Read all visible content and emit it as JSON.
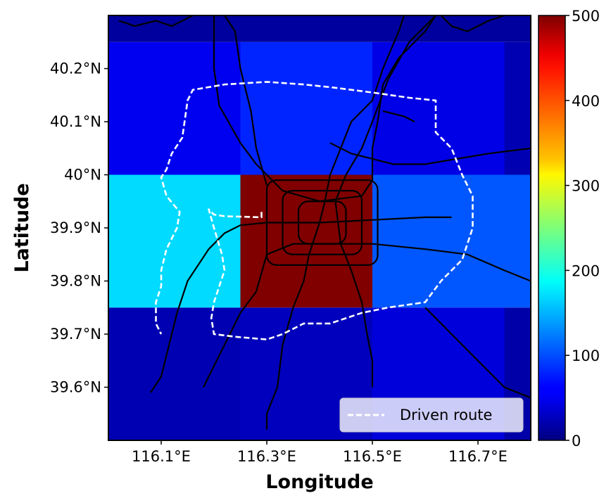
{
  "chart_data": {
    "type": "heatmap",
    "xlabel": "Longitude",
    "ylabel": "Latitude",
    "xlim": [
      116.0,
      116.8
    ],
    "ylim": [
      39.5,
      40.3
    ],
    "x_ticks": [
      {
        "value": 116.1,
        "label": "116.1°E"
      },
      {
        "value": 116.3,
        "label": "116.3°E"
      },
      {
        "value": 116.5,
        "label": "116.5°E"
      },
      {
        "value": 116.7,
        "label": "116.7°E"
      }
    ],
    "y_ticks": [
      {
        "value": 39.6,
        "label": "39.6°N"
      },
      {
        "value": 39.7,
        "label": "39.7°N"
      },
      {
        "value": 39.8,
        "label": "39.8°N"
      },
      {
        "value": 39.9,
        "label": "39.9°N"
      },
      {
        "value": 40.0,
        "label": "40°N"
      },
      {
        "value": 40.1,
        "label": "40.1°N"
      },
      {
        "value": 40.2,
        "label": "40.2°N"
      }
    ],
    "x_edges": [
      116.0,
      116.25,
      116.5,
      116.75,
      116.8
    ],
    "y_edges": [
      39.5,
      39.75,
      40.0,
      40.25,
      40.3
    ],
    "grid_values": [
      [
        25,
        30,
        45,
        20
      ],
      [
        170,
        500,
        105,
        105
      ],
      [
        55,
        80,
        50,
        25
      ],
      [
        15,
        15,
        15,
        15
      ]
    ],
    "colorbar": {
      "vmin": 0,
      "vmax": 500,
      "colormap": "jet",
      "ticks": [
        {
          "value": 0,
          "label": "0"
        },
        {
          "value": 100,
          "label": "100"
        },
        {
          "value": 200,
          "label": "200"
        },
        {
          "value": 300,
          "label": "300"
        },
        {
          "value": 400,
          "label": "400"
        },
        {
          "value": 500,
          "label": "500"
        }
      ]
    },
    "legend": {
      "position": "bottom-right",
      "entries": [
        "Driven route"
      ]
    },
    "driven_route": [
      [
        116.29,
        39.93
      ],
      [
        116.29,
        39.92
      ],
      [
        116.22,
        39.922
      ],
      [
        116.2,
        39.925
      ],
      [
        116.19,
        39.935
      ],
      [
        116.2,
        39.9
      ],
      [
        116.215,
        39.85
      ],
      [
        116.22,
        39.82
      ],
      [
        116.21,
        39.79
      ],
      [
        116.2,
        39.76
      ],
      [
        116.195,
        39.73
      ],
      [
        116.2,
        39.7
      ],
      [
        116.24,
        39.695
      ],
      [
        116.3,
        39.69
      ],
      [
        116.33,
        39.7
      ],
      [
        116.37,
        39.72
      ],
      [
        116.42,
        39.72
      ],
      [
        116.48,
        39.74
      ],
      [
        116.53,
        39.75
      ],
      [
        116.6,
        39.76
      ],
      [
        116.63,
        39.8
      ],
      [
        116.67,
        39.84
      ],
      [
        116.69,
        39.9
      ],
      [
        116.69,
        39.96
      ],
      [
        116.67,
        40.0
      ],
      [
        116.65,
        40.05
      ],
      [
        116.62,
        40.08
      ],
      [
        116.62,
        40.14
      ],
      [
        116.57,
        40.145
      ],
      [
        116.5,
        40.155
      ],
      [
        116.42,
        40.165
      ],
      [
        116.37,
        40.17
      ],
      [
        116.3,
        40.175
      ],
      [
        116.22,
        40.17
      ],
      [
        116.16,
        40.16
      ],
      [
        116.15,
        40.14
      ],
      [
        116.14,
        40.07
      ],
      [
        116.12,
        40.04
      ],
      [
        116.11,
        40.01
      ],
      [
        116.1,
        39.995
      ],
      [
        116.11,
        39.96
      ],
      [
        116.135,
        39.93
      ],
      [
        116.13,
        39.9
      ],
      [
        116.11,
        39.86
      ],
      [
        116.1,
        39.82
      ],
      [
        116.1,
        39.79
      ],
      [
        116.09,
        39.76
      ],
      [
        116.09,
        39.72
      ],
      [
        116.1,
        39.7
      ]
    ],
    "subway_lines": [
      [
        [
          116.02,
          40.29
        ],
        [
          116.05,
          40.28
        ],
        [
          116.09,
          40.29
        ],
        [
          116.12,
          40.28
        ],
        [
          116.16,
          40.3
        ]
      ],
      [
        [
          116.2,
          40.3
        ],
        [
          116.2,
          40.25
        ],
        [
          116.2,
          40.2
        ],
        [
          116.21,
          40.13
        ],
        [
          116.25,
          40.06
        ],
        [
          116.28,
          40.02
        ],
        [
          116.31,
          39.99
        ],
        [
          116.33,
          39.97
        ],
        [
          116.4,
          39.95
        ],
        [
          116.48,
          39.96
        ],
        [
          116.5,
          39.99
        ],
        [
          116.5,
          40.05
        ],
        [
          116.51,
          40.1
        ],
        [
          116.52,
          40.17
        ],
        [
          116.55,
          40.22
        ],
        [
          116.6,
          40.27
        ],
        [
          116.62,
          40.3
        ]
      ],
      [
        [
          116.08,
          39.59
        ],
        [
          116.1,
          39.62
        ],
        [
          116.11,
          39.66
        ],
        [
          116.12,
          39.7
        ],
        [
          116.13,
          39.74
        ],
        [
          116.15,
          39.8
        ],
        [
          116.19,
          39.86
        ],
        [
          116.22,
          39.89
        ],
        [
          116.25,
          39.905
        ],
        [
          116.3,
          39.91
        ],
        [
          116.4,
          39.91
        ],
        [
          116.5,
          39.915
        ],
        [
          116.6,
          39.92
        ],
        [
          116.65,
          39.92
        ]
      ],
      [
        [
          116.18,
          39.6
        ],
        [
          116.2,
          39.64
        ],
        [
          116.22,
          39.68
        ],
        [
          116.25,
          39.74
        ],
        [
          116.28,
          39.78
        ],
        [
          116.3,
          39.85
        ],
        [
          116.35,
          39.87
        ],
        [
          116.41,
          39.87
        ],
        [
          116.46,
          39.87
        ],
        [
          116.5,
          39.87
        ],
        [
          116.6,
          39.86
        ],
        [
          116.68,
          39.85
        ],
        [
          116.75,
          39.82
        ],
        [
          116.8,
          39.8
        ]
      ],
      [
        [
          116.3,
          39.52
        ],
        [
          116.3,
          39.55
        ],
        [
          116.32,
          39.6
        ],
        [
          116.33,
          39.68
        ],
        [
          116.35,
          39.75
        ],
        [
          116.37,
          39.8
        ],
        [
          116.38,
          39.85
        ],
        [
          116.39,
          39.88
        ],
        [
          116.4,
          39.91
        ],
        [
          116.41,
          39.95
        ],
        [
          116.42,
          40.0
        ],
        [
          116.44,
          40.05
        ],
        [
          116.46,
          40.1
        ],
        [
          116.5,
          40.14
        ],
        [
          116.52,
          40.2
        ],
        [
          116.55,
          40.27
        ],
        [
          116.56,
          40.3
        ]
      ],
      [
        [
          116.5,
          39.6
        ],
        [
          116.5,
          39.65
        ],
        [
          116.49,
          39.7
        ],
        [
          116.48,
          39.76
        ],
        [
          116.46,
          39.82
        ],
        [
          116.44,
          39.87
        ],
        [
          116.43,
          39.95
        ],
        [
          116.45,
          40.0
        ],
        [
          116.48,
          40.05
        ],
        [
          116.5,
          40.1
        ],
        [
          116.53,
          40.18
        ],
        [
          116.57,
          40.25
        ],
        [
          116.62,
          40.3
        ]
      ],
      [
        [
          116.6,
          39.75
        ],
        [
          116.65,
          39.7
        ],
        [
          116.7,
          39.65
        ],
        [
          116.75,
          39.6
        ],
        [
          116.8,
          39.58
        ]
      ],
      [
        [
          116.3,
          39.98
        ],
        [
          116.28,
          40.05
        ],
        [
          116.27,
          40.12
        ],
        [
          116.25,
          40.2
        ],
        [
          116.24,
          40.27
        ],
        [
          116.22,
          40.3
        ]
      ],
      [
        [
          116.52,
          40.12
        ],
        [
          116.56,
          40.11
        ],
        [
          116.58,
          40.1
        ]
      ],
      [
        [
          116.42,
          40.06
        ],
        [
          116.46,
          40.04
        ],
        [
          116.5,
          40.03
        ],
        [
          116.54,
          40.02
        ],
        [
          116.6,
          40.02
        ],
        [
          116.66,
          40.03
        ],
        [
          116.72,
          40.04
        ],
        [
          116.8,
          40.05
        ]
      ],
      [
        [
          116.63,
          40.3
        ],
        [
          116.65,
          40.28
        ],
        [
          116.68,
          40.27
        ],
        [
          116.72,
          40.29
        ],
        [
          116.75,
          40.3
        ]
      ]
    ],
    "ring_roads": [
      {
        "x0": 116.36,
        "x1": 116.45,
        "y0": 39.87,
        "y1": 39.95
      },
      {
        "x0": 116.33,
        "x1": 116.48,
        "y0": 39.85,
        "y1": 39.97
      },
      {
        "x0": 116.3,
        "x1": 116.51,
        "y0": 39.83,
        "y1": 39.99
      }
    ]
  }
}
